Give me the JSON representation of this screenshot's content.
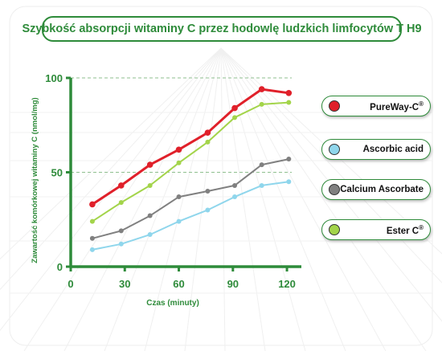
{
  "colors": {
    "frame": "#2e8b3a",
    "axis": "#2e8b3a",
    "guide": "#8fbf8f"
  },
  "chart_data": {
    "type": "line",
    "title": "Szybkość absorpcji witaminy C przez hodowlę ludzkich limfocytów T H9",
    "xlabel": "Czas (minuty)",
    "ylabel": "Zawartość komórkowej witaminy C (nmol/mg)",
    "xlim": [
      0,
      128
    ],
    "ylim": [
      0,
      100
    ],
    "x_ticks": [
      0,
      30,
      60,
      90,
      120
    ],
    "y_ticks": [
      0,
      50,
      100
    ],
    "dashed_gridlines_y": [
      50,
      100
    ],
    "legend_position": "right",
    "series": [
      {
        "name": "PureWay-C",
        "legend_main": "PureWay-C",
        "legend_sup": "®",
        "color": "#e0202a",
        "x": [
          12,
          28,
          44,
          60,
          76,
          91,
          106,
          121
        ],
        "y": [
          33,
          43,
          54,
          62,
          71,
          84,
          94,
          92
        ]
      },
      {
        "name": "Ascorbic acid",
        "legend_main": "Ascorbic acid",
        "legend_sup": "",
        "color": "#8fd6ec",
        "x": [
          12,
          28,
          44,
          60,
          76,
          91,
          106,
          121
        ],
        "y": [
          9,
          12,
          17,
          24,
          30,
          37,
          43,
          45
        ]
      },
      {
        "name": "Calcium Ascorbate",
        "legend_main": "Calcium Ascorbate",
        "legend_sup": "",
        "color": "#808080",
        "x": [
          12,
          28,
          44,
          60,
          76,
          91,
          106,
          121
        ],
        "y": [
          15,
          19,
          27,
          37,
          40,
          43,
          54,
          57
        ]
      },
      {
        "name": "Ester C",
        "legend_main": "Ester C",
        "legend_sup": "®",
        "color": "#a3d44a",
        "x": [
          12,
          28,
          44,
          60,
          76,
          91,
          106,
          121
        ],
        "y": [
          24,
          34,
          43,
          55,
          66,
          79,
          86,
          87
        ]
      }
    ]
  }
}
